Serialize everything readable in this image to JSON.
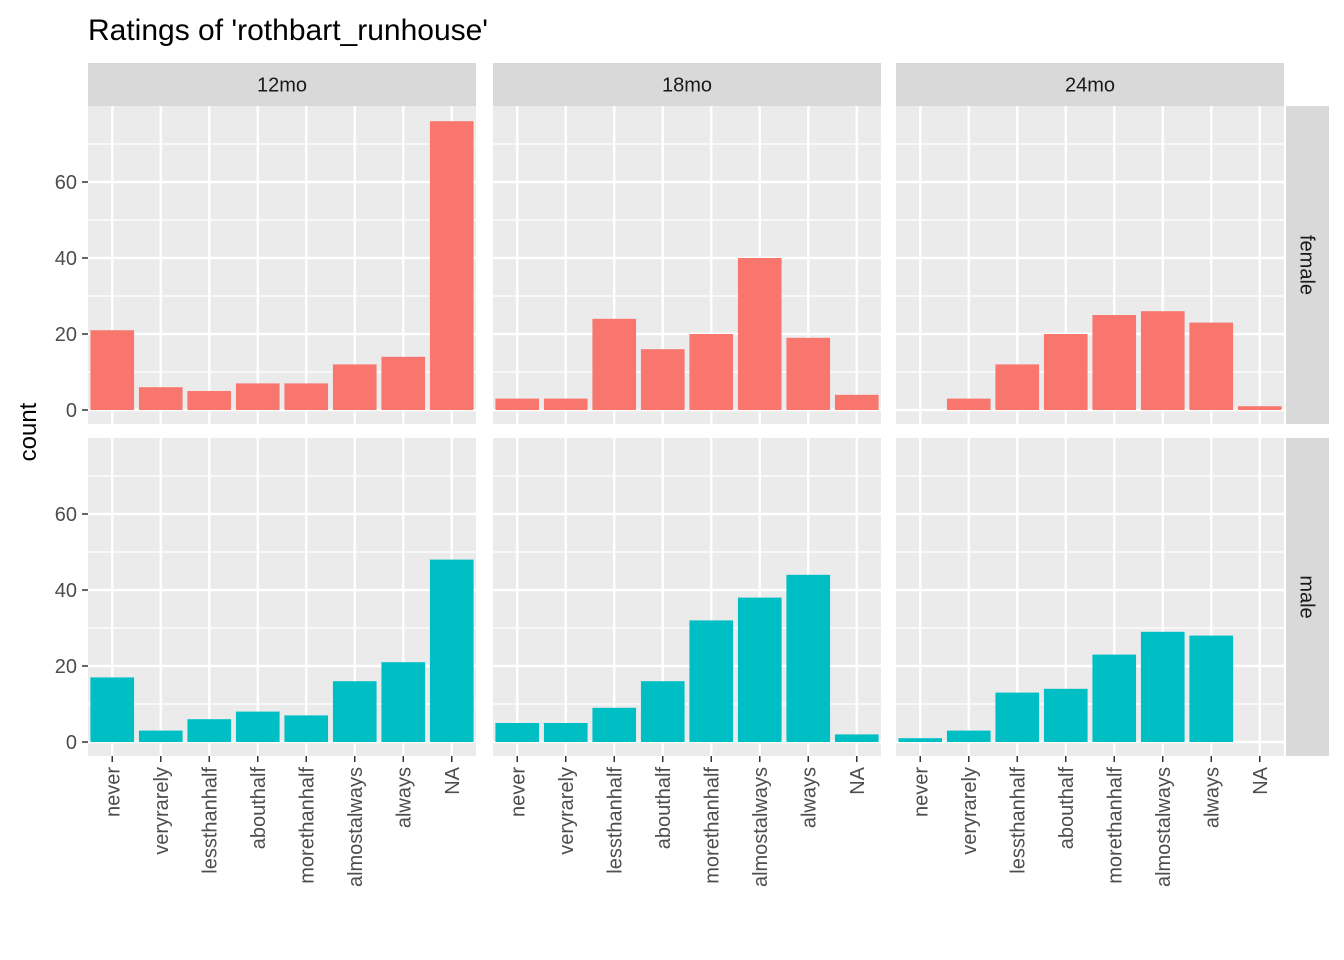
{
  "chart_data": {
    "type": "bar",
    "title": "Ratings of 'rothbart_runhouse'",
    "xlabel": "",
    "ylabel": "count",
    "ylim": [
      0,
      80
    ],
    "y_ticks": [
      0,
      20,
      40,
      60
    ],
    "grid": true,
    "categories": [
      "never",
      "veryrarely",
      "lessthanhalf",
      "abouthalf",
      "morethanhalf",
      "almostalways",
      "always",
      "NA"
    ],
    "columns": [
      "12mo",
      "18mo",
      "24mo"
    ],
    "rows": [
      "female",
      "male"
    ],
    "colors": {
      "female": "#F8766D",
      "male": "#00BFC4"
    },
    "panel_background": "#EBEBEB",
    "strip_background": "#D9D9D9",
    "panels": [
      {
        "col": "12mo",
        "row": "female",
        "values": [
          21,
          6,
          5,
          7,
          7,
          12,
          14,
          76
        ]
      },
      {
        "col": "18mo",
        "row": "female",
        "values": [
          3,
          3,
          24,
          16,
          20,
          40,
          19,
          4
        ]
      },
      {
        "col": "24mo",
        "row": "female",
        "values": [
          0,
          3,
          12,
          20,
          25,
          26,
          23,
          1
        ]
      },
      {
        "col": "12mo",
        "row": "male",
        "values": [
          17,
          3,
          6,
          8,
          7,
          16,
          21,
          48
        ]
      },
      {
        "col": "18mo",
        "row": "male",
        "values": [
          5,
          5,
          9,
          16,
          32,
          38,
          44,
          2
        ]
      },
      {
        "col": "24mo",
        "row": "male",
        "values": [
          1,
          3,
          13,
          14,
          23,
          29,
          28,
          0
        ]
      }
    ]
  }
}
